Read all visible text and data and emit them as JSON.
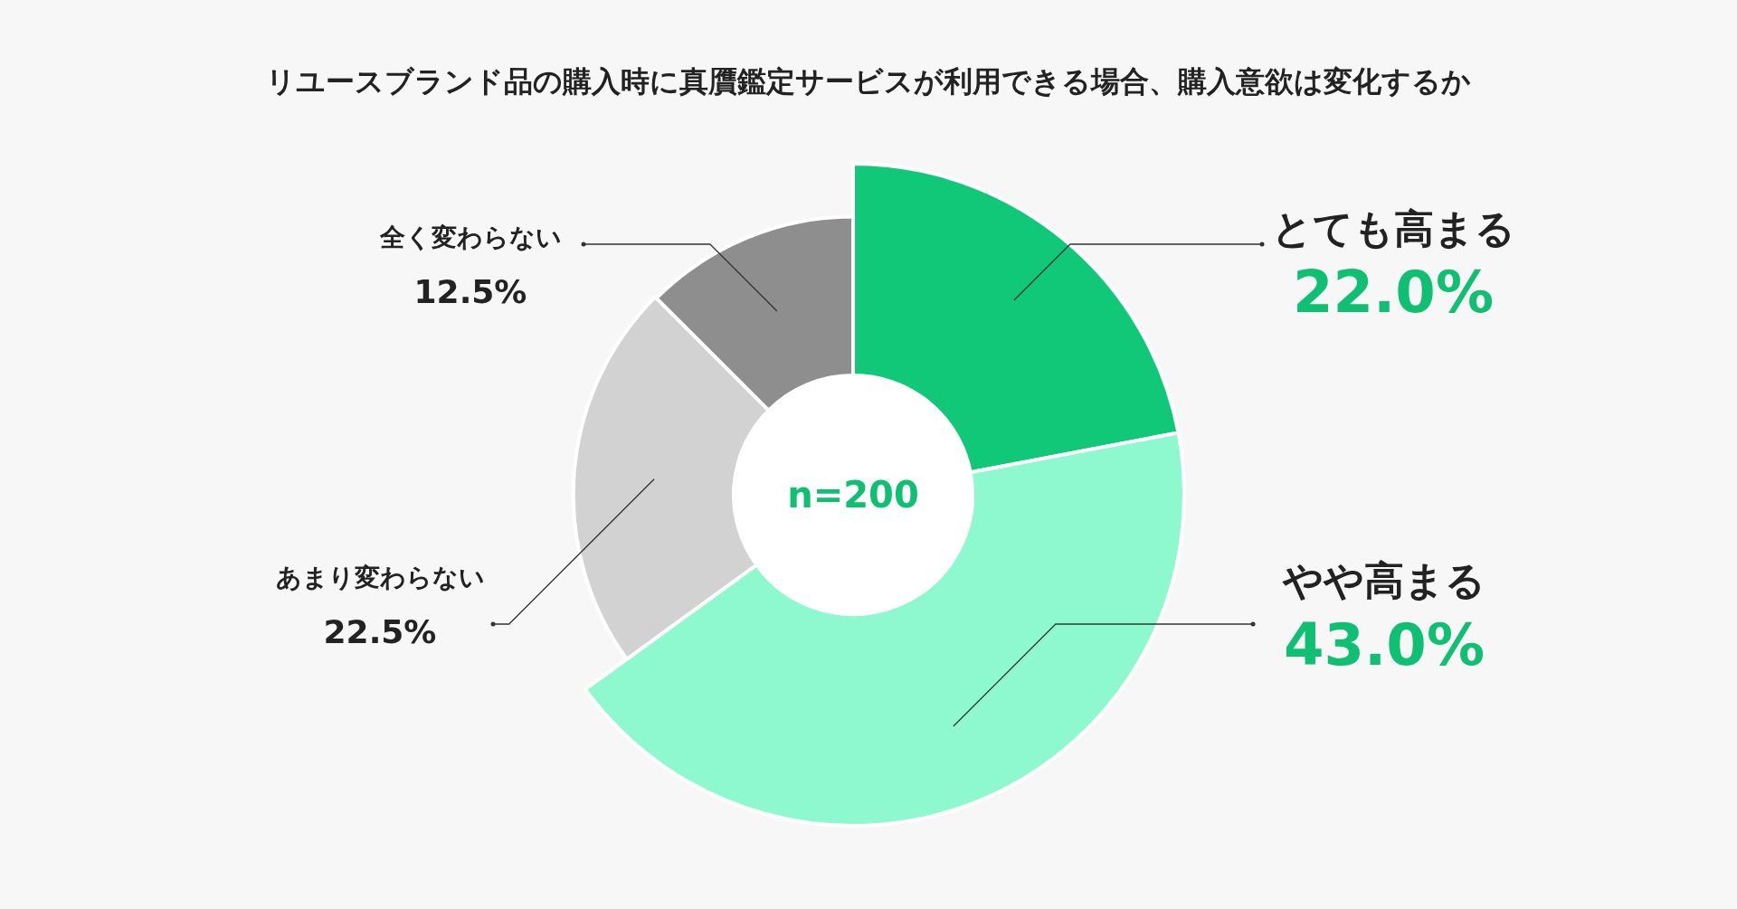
{
  "chart_data": {
    "type": "donut",
    "title": "リユースブランド品の購入時に真贋鑑定サービスが利用できる場合、購入意欲は変化するか",
    "categories": [
      "とても高まる",
      "やや高まる",
      "あまり変わらない",
      "全く変わらない"
    ],
    "values": [
      22.0,
      43.0,
      22.5,
      12.5
    ],
    "colors": [
      "#10c878",
      "#8ef8cf",
      "#d2d2d2",
      "#8e8e8e"
    ],
    "value_labels": [
      "22.0%",
      "43.0%",
      "22.5%",
      "12.5%"
    ],
    "annotations": [
      "n=200"
    ]
  }
}
